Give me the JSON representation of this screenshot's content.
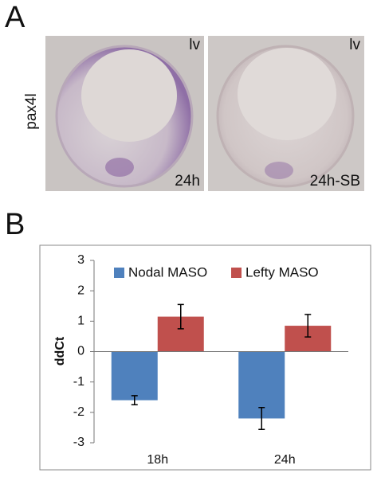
{
  "panel_a": {
    "label": "A",
    "gene": "pax4l",
    "images": [
      {
        "view": "lv",
        "condition": "24h"
      },
      {
        "view": "lv",
        "condition": "24h-SB"
      }
    ]
  },
  "panel_b": {
    "label": "B"
  },
  "chart_data": {
    "type": "bar",
    "ylabel": "ddCt",
    "categories": [
      "18h",
      "24h"
    ],
    "series": [
      {
        "name": "Nodal MASO",
        "color": "#4f81bd",
        "values": [
          -1.6,
          -2.2
        ],
        "errors": [
          0.15,
          0.36
        ]
      },
      {
        "name": "Lefty MASO",
        "color": "#c0504d",
        "values": [
          1.15,
          0.85
        ],
        "errors": [
          0.4,
          0.37
        ]
      }
    ],
    "ylim": [
      -3,
      3
    ],
    "yticks": [
      -3,
      -2,
      -1,
      0,
      1,
      2,
      3
    ],
    "legend": "top",
    "grid": false
  }
}
